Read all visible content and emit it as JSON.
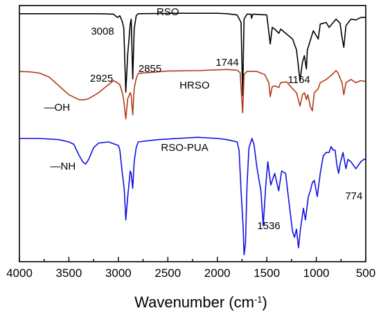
{
  "chart_data": {
    "type": "line",
    "title": "",
    "xlabel_main": "Wavenumber (cm",
    "xlabel_sup": "-1",
    "xlabel_close": ")",
    "ylabel": "",
    "xlim": [
      4000,
      500
    ],
    "x_reversed": true,
    "x_ticks": [
      4000,
      3500,
      3000,
      2500,
      2000,
      1500,
      1000,
      500
    ],
    "grid": false,
    "series": [
      {
        "name": "RSO",
        "color": "#000000",
        "points": [
          [
            4000,
            0.015
          ],
          [
            3600,
            0.015
          ],
          [
            3200,
            0.015
          ],
          [
            3050,
            0.02
          ],
          [
            3010,
            0.06
          ],
          [
            2985,
            0.04
          ],
          [
            2960,
            0.11
          ],
          [
            2945,
            0.19
          ],
          [
            2925,
            0.96
          ],
          [
            2905,
            0.5
          ],
          [
            2880,
            0.14
          ],
          [
            2870,
            0.08
          ],
          [
            2855,
            0.8
          ],
          [
            2840,
            0.2
          ],
          [
            2820,
            0.04
          ],
          [
            2800,
            0.015
          ],
          [
            2400,
            0.01
          ],
          [
            2000,
            0.01
          ],
          [
            1900,
            0.015
          ],
          [
            1800,
            0.03
          ],
          [
            1760,
            0.12
          ],
          [
            1744,
            1.0
          ],
          [
            1730,
            0.08
          ],
          [
            1700,
            0.02
          ],
          [
            1660,
            0.02
          ],
          [
            1654,
            0.07
          ],
          [
            1640,
            0.02
          ],
          [
            1500,
            0.03
          ],
          [
            1465,
            0.38
          ],
          [
            1445,
            0.18
          ],
          [
            1420,
            0.2
          ],
          [
            1378,
            0.25
          ],
          [
            1360,
            0.2
          ],
          [
            1240,
            0.32
          ],
          [
            1200,
            0.45
          ],
          [
            1164,
            0.82
          ],
          [
            1140,
            0.6
          ],
          [
            1120,
            0.52
          ],
          [
            1100,
            0.68
          ],
          [
            1090,
            0.45
          ],
          [
            1030,
            0.22
          ],
          [
            980,
            0.32
          ],
          [
            960,
            0.14
          ],
          [
            900,
            0.12
          ],
          [
            870,
            0.18
          ],
          [
            800,
            0.08
          ],
          [
            760,
            0.13
          ],
          [
            740,
            0.3
          ],
          [
            722,
            0.42
          ],
          [
            700,
            0.16
          ],
          [
            650,
            0.08
          ],
          [
            600,
            0.09
          ],
          [
            550,
            0.06
          ],
          [
            500,
            0.06
          ]
        ]
      },
      {
        "name": "HRSO",
        "color": "#b03a1a",
        "points": [
          [
            4000,
            0.02
          ],
          [
            3900,
            0.03
          ],
          [
            3800,
            0.06
          ],
          [
            3700,
            0.16
          ],
          [
            3600,
            0.38
          ],
          [
            3500,
            0.6
          ],
          [
            3400,
            0.72
          ],
          [
            3350,
            0.73
          ],
          [
            3300,
            0.7
          ],
          [
            3200,
            0.55
          ],
          [
            3100,
            0.35
          ],
          [
            3050,
            0.25
          ],
          [
            3010,
            0.3
          ],
          [
            2985,
            0.35
          ],
          [
            2960,
            0.55
          ],
          [
            2945,
            0.75
          ],
          [
            2925,
            1.2
          ],
          [
            2905,
            0.7
          ],
          [
            2880,
            0.55
          ],
          [
            2870,
            0.62
          ],
          [
            2855,
            1.1
          ],
          [
            2840,
            0.45
          ],
          [
            2820,
            0.2
          ],
          [
            2800,
            0.07
          ],
          [
            2500,
            0.01
          ],
          [
            2200,
            0.0
          ],
          [
            2000,
            -0.02
          ],
          [
            1900,
            -0.03
          ],
          [
            1800,
            -0.01
          ],
          [
            1770,
            0.05
          ],
          [
            1744,
            1.05
          ],
          [
            1730,
            0.1
          ],
          [
            1700,
            0.02
          ],
          [
            1600,
            0.02
          ],
          [
            1560,
            0.06
          ],
          [
            1520,
            0.1
          ],
          [
            1480,
            0.3
          ],
          [
            1465,
            0.65
          ],
          [
            1445,
            0.4
          ],
          [
            1420,
            0.38
          ],
          [
            1378,
            0.42
          ],
          [
            1360,
            0.3
          ],
          [
            1300,
            0.28
          ],
          [
            1240,
            0.45
          ],
          [
            1200,
            0.55
          ],
          [
            1164,
            0.88
          ],
          [
            1140,
            0.6
          ],
          [
            1120,
            0.55
          ],
          [
            1100,
            0.72
          ],
          [
            1085,
            0.6
          ],
          [
            1060,
            0.9
          ],
          [
            1040,
            1.0
          ],
          [
            1020,
            0.55
          ],
          [
            980,
            0.45
          ],
          [
            960,
            0.3
          ],
          [
            900,
            0.22
          ],
          [
            850,
            0.12
          ],
          [
            800,
            0.0
          ],
          [
            780,
            0.06
          ],
          [
            740,
            0.3
          ],
          [
            722,
            0.6
          ],
          [
            700,
            0.3
          ],
          [
            650,
            0.22
          ],
          [
            600,
            0.3
          ],
          [
            550,
            0.25
          ],
          [
            500,
            0.27
          ]
        ]
      },
      {
        "name": "RSO-PUA",
        "color": "#1010e0",
        "points": [
          [
            4000,
            0.0
          ],
          [
            3800,
            0.0
          ],
          [
            3600,
            0.01
          ],
          [
            3500,
            0.03
          ],
          [
            3450,
            0.05
          ],
          [
            3400,
            0.14
          ],
          [
            3360,
            0.2
          ],
          [
            3330,
            0.22
          ],
          [
            3300,
            0.18
          ],
          [
            3250,
            0.08
          ],
          [
            3200,
            0.04
          ],
          [
            3100,
            0.03
          ],
          [
            3000,
            0.06
          ],
          [
            2985,
            0.1
          ],
          [
            2960,
            0.3
          ],
          [
            2940,
            0.44
          ],
          [
            2925,
            0.7
          ],
          [
            2905,
            0.5
          ],
          [
            2880,
            0.28
          ],
          [
            2870,
            0.3
          ],
          [
            2855,
            0.43
          ],
          [
            2840,
            0.2
          ],
          [
            2820,
            0.08
          ],
          [
            2800,
            0.03
          ],
          [
            2600,
            0.01
          ],
          [
            2400,
            0.0
          ],
          [
            2200,
            -0.01
          ],
          [
            2000,
            0.0
          ],
          [
            1900,
            0.01
          ],
          [
            1800,
            0.03
          ],
          [
            1780,
            0.1
          ],
          [
            1760,
            0.45
          ],
          [
            1740,
            0.75
          ],
          [
            1730,
            1.0
          ],
          [
            1715,
            0.9
          ],
          [
            1700,
            0.4
          ],
          [
            1680,
            0.08
          ],
          [
            1650,
            0.0
          ],
          [
            1630,
            0.05
          ],
          [
            1600,
            0.25
          ],
          [
            1560,
            0.45
          ],
          [
            1536,
            0.75
          ],
          [
            1510,
            0.4
          ],
          [
            1490,
            0.2
          ],
          [
            1460,
            0.4
          ],
          [
            1440,
            0.35
          ],
          [
            1420,
            0.3
          ],
          [
            1380,
            0.45
          ],
          [
            1350,
            0.28
          ],
          [
            1310,
            0.3
          ],
          [
            1280,
            0.52
          ],
          [
            1240,
            0.8
          ],
          [
            1220,
            0.85
          ],
          [
            1200,
            0.78
          ],
          [
            1180,
            0.94
          ],
          [
            1160,
            0.78
          ],
          [
            1130,
            0.6
          ],
          [
            1110,
            0.7
          ],
          [
            1080,
            0.5
          ],
          [
            1060,
            0.45
          ],
          [
            1040,
            0.38
          ],
          [
            1020,
            0.36
          ],
          [
            990,
            0.5
          ],
          [
            960,
            0.3
          ],
          [
            930,
            0.15
          ],
          [
            900,
            0.12
          ],
          [
            870,
            0.12
          ],
          [
            850,
            0.07
          ],
          [
            830,
            0.1
          ],
          [
            810,
            0.1
          ],
          [
            790,
            0.24
          ],
          [
            774,
            0.3
          ],
          [
            760,
            0.22
          ],
          [
            730,
            0.12
          ],
          [
            700,
            0.26
          ],
          [
            680,
            0.18
          ],
          [
            650,
            0.2
          ],
          [
            600,
            0.26
          ],
          [
            550,
            0.2
          ],
          [
            520,
            0.18
          ],
          [
            500,
            0.18
          ]
        ]
      }
    ],
    "annotations": [
      {
        "text": "RSO",
        "x": 2500,
        "series": 0
      },
      {
        "text": "3008",
        "x": 3160,
        "series": 0
      },
      {
        "text": "2855",
        "x": 2680,
        "series": 0
      },
      {
        "text": "1744",
        "x": 1900,
        "series": 0
      },
      {
        "text": "2925",
        "x": 3170,
        "series": 1
      },
      {
        "text": "HRSO",
        "x": 2230,
        "series": 1
      },
      {
        "text": "1164",
        "x": 1175,
        "series": 1
      },
      {
        "text": "—OH",
        "x": 3620,
        "series": 1
      },
      {
        "text": "RSO-PUA",
        "x": 2330,
        "series": 2
      },
      {
        "text": "—NH",
        "x": 3560,
        "series": 2
      },
      {
        "text": "1536",
        "x": 1480,
        "series": 2
      },
      {
        "text": "774",
        "x": 620,
        "series": 2
      }
    ]
  }
}
